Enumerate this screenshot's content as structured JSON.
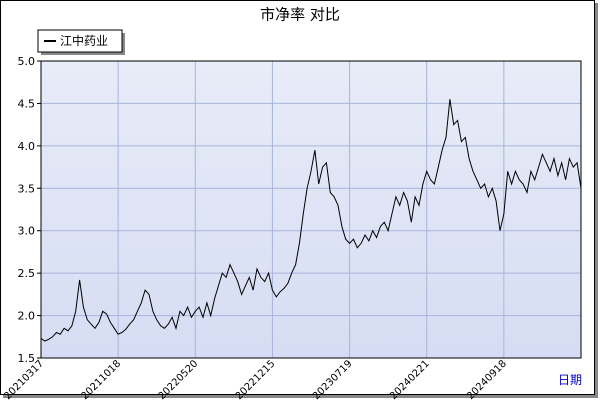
{
  "chart_data": {
    "type": "line",
    "title": "市净率  对比",
    "x_label": "日期",
    "categories": [
      "20210317",
      null,
      null,
      null,
      null,
      null,
      null,
      null,
      null,
      null,
      null,
      null,
      null,
      null,
      null,
      null,
      null,
      null,
      null,
      null,
      "20211018",
      null,
      null,
      null,
      null,
      null,
      null,
      null,
      null,
      null,
      null,
      null,
      null,
      null,
      null,
      null,
      null,
      null,
      null,
      null,
      "20220520",
      null,
      null,
      null,
      null,
      null,
      null,
      null,
      null,
      null,
      null,
      null,
      null,
      null,
      null,
      null,
      null,
      null,
      null,
      null,
      "20221215",
      null,
      null,
      null,
      null,
      null,
      null,
      null,
      null,
      null,
      null,
      null,
      null,
      null,
      null,
      null,
      null,
      null,
      null,
      null,
      "20230719",
      null,
      null,
      null,
      null,
      null,
      null,
      null,
      null,
      null,
      null,
      null,
      null,
      null,
      null,
      null,
      null,
      null,
      null,
      null,
      "20240221",
      null,
      null,
      null,
      null,
      null,
      null,
      null,
      null,
      null,
      null,
      null,
      null,
      null,
      null,
      null,
      null,
      null,
      null,
      null,
      "20240918",
      null,
      null,
      null,
      null,
      null,
      null,
      null,
      null,
      null,
      null,
      null,
      null,
      null,
      null,
      null,
      null,
      null,
      null,
      null,
      null
    ],
    "series": [
      {
        "name": "江中药业",
        "color": "#000000",
        "values": [
          1.73,
          1.7,
          1.72,
          1.75,
          1.8,
          1.78,
          1.85,
          1.82,
          1.88,
          2.05,
          2.42,
          2.1,
          1.95,
          1.9,
          1.85,
          1.92,
          2.05,
          2.02,
          1.92,
          1.85,
          1.78,
          1.8,
          1.84,
          1.9,
          1.95,
          2.05,
          2.15,
          2.3,
          2.25,
          2.05,
          1.95,
          1.88,
          1.85,
          1.9,
          1.98,
          1.85,
          2.05,
          2.0,
          2.1,
          1.98,
          2.05,
          2.1,
          1.98,
          2.15,
          2.0,
          2.2,
          2.35,
          2.5,
          2.45,
          2.6,
          2.5,
          2.4,
          2.25,
          2.35,
          2.45,
          2.3,
          2.55,
          2.45,
          2.4,
          2.5,
          2.3,
          2.22,
          2.28,
          2.32,
          2.38,
          2.5,
          2.6,
          2.85,
          3.2,
          3.5,
          3.7,
          3.95,
          3.55,
          3.75,
          3.8,
          3.45,
          3.4,
          3.3,
          3.05,
          2.9,
          2.85,
          2.9,
          2.8,
          2.85,
          2.95,
          2.88,
          3.0,
          2.92,
          3.05,
          3.1,
          3.0,
          3.2,
          3.4,
          3.3,
          3.45,
          3.35,
          3.1,
          3.4,
          3.3,
          3.55,
          3.7,
          3.6,
          3.55,
          3.75,
          3.95,
          4.1,
          4.55,
          4.25,
          4.3,
          4.05,
          4.1,
          3.85,
          3.7,
          3.6,
          3.5,
          3.55,
          3.4,
          3.5,
          3.35,
          3.0,
          3.2,
          3.7,
          3.55,
          3.7,
          3.6,
          3.55,
          3.45,
          3.7,
          3.6,
          3.75,
          3.9,
          3.8,
          3.7,
          3.85,
          3.65,
          3.8,
          3.6,
          3.85,
          3.75,
          3.8,
          3.5
        ]
      }
    ],
    "ylim": [
      1.5,
      5.0
    ],
    "yticks": [
      {
        "value": 1.5,
        "label": "1.5"
      },
      {
        "value": 2.0,
        "label": "2.0"
      },
      {
        "value": 2.5,
        "label": "2.5"
      },
      {
        "value": 3.0,
        "label": "3.0"
      },
      {
        "value": 3.5,
        "label": "3.5"
      },
      {
        "value": 4.0,
        "label": "4.0"
      },
      {
        "value": 4.5,
        "label": "4.5"
      },
      {
        "value": 5.0,
        "label": "5.0"
      }
    ],
    "grid": true,
    "legend": "top-left"
  }
}
